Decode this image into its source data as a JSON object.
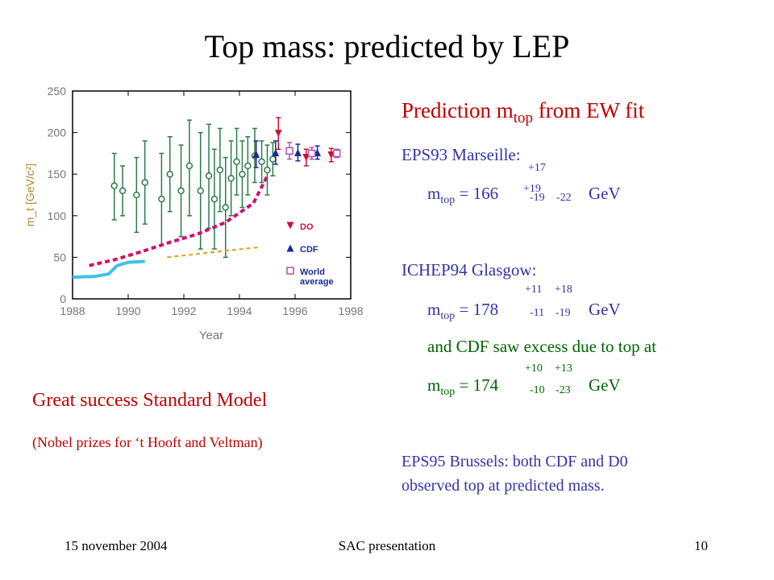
{
  "title": "Top mass:  predicted by LEP",
  "chart_data": {
    "type": "scatter",
    "xlabel": "Year",
    "ylabel": "m_t [GeV/c²]",
    "xlim": [
      1988,
      1998
    ],
    "ylim": [
      0,
      250
    ],
    "xticks": [
      "1988",
      "1990",
      "1992",
      "1994",
      "1996",
      "1998"
    ],
    "yticks": [
      "0",
      "50",
      "100",
      "150",
      "200",
      "250"
    ],
    "legend_position": "bottom-right",
    "legend": [
      {
        "label": "DO",
        "color": "#d01030",
        "marker": "triangle-down"
      },
      {
        "label": "CDF",
        "color": "#1a2a9a",
        "marker": "triangle-up"
      },
      {
        "label": "World average",
        "color": "#b050b0",
        "marker": "open-square"
      }
    ],
    "series": [
      {
        "name": "",
        "marker": "open-circle",
        "color": "#2e7a4a",
        "points": [
          {
            "x": 1989.5,
            "y": 136,
            "ylo": 95,
            "yhi": 175
          },
          {
            "x": 1989.8,
            "y": 130,
            "ylo": 100,
            "yhi": 160
          },
          {
            "x": 1990.3,
            "y": 125,
            "ylo": 80,
            "yhi": 170
          },
          {
            "x": 1990.6,
            "y": 140,
            "ylo": 90,
            "yhi": 190
          },
          {
            "x": 1991.2,
            "y": 120,
            "ylo": 65,
            "yhi": 175
          },
          {
            "x": 1991.5,
            "y": 150,
            "ylo": 105,
            "yhi": 195
          },
          {
            "x": 1991.9,
            "y": 130,
            "ylo": 75,
            "yhi": 185
          },
          {
            "x": 1992.2,
            "y": 160,
            "ylo": 100,
            "yhi": 215
          },
          {
            "x": 1992.6,
            "y": 130,
            "ylo": 60,
            "yhi": 200
          },
          {
            "x": 1992.9,
            "y": 148,
            "ylo": 85,
            "yhi": 210
          },
          {
            "x": 1993.1,
            "y": 120,
            "ylo": 60,
            "yhi": 180
          },
          {
            "x": 1993.3,
            "y": 155,
            "ylo": 105,
            "yhi": 205
          },
          {
            "x": 1993.5,
            "y": 110,
            "ylo": 50,
            "yhi": 170
          },
          {
            "x": 1993.7,
            "y": 145,
            "ylo": 100,
            "yhi": 190
          },
          {
            "x": 1993.9,
            "y": 165,
            "ylo": 125,
            "yhi": 205
          },
          {
            "x": 1994.1,
            "y": 150,
            "ylo": 110,
            "yhi": 190
          },
          {
            "x": 1994.3,
            "y": 160,
            "ylo": 125,
            "yhi": 195
          },
          {
            "x": 1994.55,
            "y": 172,
            "ylo": 140,
            "yhi": 205
          },
          {
            "x": 1994.8,
            "y": 165,
            "ylo": 140,
            "yhi": 190
          },
          {
            "x": 1995.0,
            "y": 155,
            "ylo": 125,
            "yhi": 185
          },
          {
            "x": 1995.2,
            "y": 168,
            "ylo": 148,
            "yhi": 188
          }
        ]
      },
      {
        "name": "",
        "marker": "dashed-line",
        "color": "#d01070",
        "points": [
          [
            1988.6,
            40
          ],
          [
            1989.5,
            47
          ],
          [
            1990.5,
            57
          ],
          [
            1991.5,
            68
          ],
          [
            1992.5,
            78
          ],
          [
            1993.5,
            92
          ],
          [
            1994.5,
            115
          ],
          [
            1995.0,
            148
          ]
        ]
      },
      {
        "name": "",
        "marker": "line",
        "color": "#40c0e8",
        "points": [
          [
            1988.0,
            26
          ],
          [
            1988.8,
            27
          ],
          [
            1989.3,
            30
          ],
          [
            1989.6,
            40
          ],
          [
            1990.0,
            44
          ],
          [
            1990.6,
            45
          ]
        ]
      },
      {
        "name": "",
        "marker": "dashed-line",
        "color": "#e0a020",
        "points": [
          [
            1991.4,
            50
          ],
          [
            1992.5,
            54
          ],
          [
            1993.5,
            58
          ],
          [
            1994.7,
            62
          ]
        ]
      },
      {
        "name": "DO",
        "marker": "triangle-down",
        "color": "#d01030",
        "points": [
          {
            "x": 1995.4,
            "y": 199,
            "ylo": 180,
            "yhi": 218
          },
          {
            "x": 1996.4,
            "y": 170,
            "ylo": 160,
            "yhi": 180
          },
          {
            "x": 1997.3,
            "y": 173,
            "ylo": 165,
            "yhi": 181
          }
        ]
      },
      {
        "name": "CDF",
        "marker": "triangle-up",
        "color": "#1a2a9a",
        "points": [
          {
            "x": 1994.6,
            "y": 174,
            "ylo": 158,
            "yhi": 190
          },
          {
            "x": 1995.3,
            "y": 176,
            "ylo": 162,
            "yhi": 190
          },
          {
            "x": 1996.1,
            "y": 176,
            "ylo": 166,
            "yhi": 186
          },
          {
            "x": 1996.8,
            "y": 176,
            "ylo": 168,
            "yhi": 184
          }
        ]
      },
      {
        "name": "World average",
        "marker": "open-square",
        "color": "#b050b0",
        "points": [
          {
            "x": 1995.8,
            "y": 178,
            "ylo": 168,
            "yhi": 188
          },
          {
            "x": 1996.6,
            "y": 175,
            "ylo": 168,
            "yhi": 182
          },
          {
            "x": 1997.5,
            "y": 175,
            "ylo": 170,
            "yhi": 180
          }
        ]
      }
    ]
  },
  "right": {
    "heading_pre": "Prediction m",
    "heading_sub": "top",
    "heading_post": " from EW fit",
    "eps93": "EPS93 Marseille:",
    "eq1": {
      "m": "m",
      "sub": "top",
      "rest": " = 166",
      "e1_up": "+17",
      "e1_up2": "+19",
      "e1_dn": "-19",
      "e1_dn2": "-22",
      "unit": "GeV"
    },
    "ichep94": "ICHEP94 Glasgow:",
    "eq2": {
      "m": "m",
      "sub": "top",
      "rest": " = 178",
      "up1": "+11",
      "up2": "+18",
      "dn1": "-11",
      "dn2": "-19",
      "unit": "GeV"
    },
    "cdf": "and CDF saw excess due to top at",
    "eq3": {
      "m": "m",
      "sub": "top",
      "rest": " = 174",
      "up1": "+10",
      "up2": "+13",
      "dn1": "-10",
      "dn2": "-23",
      "unit": "GeV"
    },
    "eps95_line1": "EPS95 Brussels: both CDF and D0",
    "eps95_line2": "observed top at predicted mass."
  },
  "left": {
    "success": "Great success Standard Model",
    "nobel": "(Nobel prizes for ‘t Hooft and Veltman)"
  },
  "footer": {
    "date": "15 november 2004",
    "event": "SAC presentation",
    "page": "10"
  }
}
